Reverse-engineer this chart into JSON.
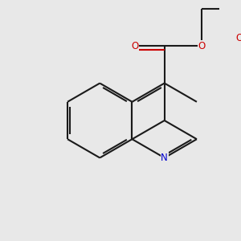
{
  "bg_color": "#e8e8e8",
  "bond_color": "#1a1a1a",
  "o_color": "#cc0000",
  "n_color": "#0000cc",
  "bond_lw": 1.5,
  "dbo": 0.06,
  "figsize": [
    3.0,
    3.0
  ],
  "dpi": 100,
  "font_size": 8.5,
  "xlim": [
    -2.2,
    3.2
  ],
  "ylim": [
    -3.2,
    3.2
  ]
}
